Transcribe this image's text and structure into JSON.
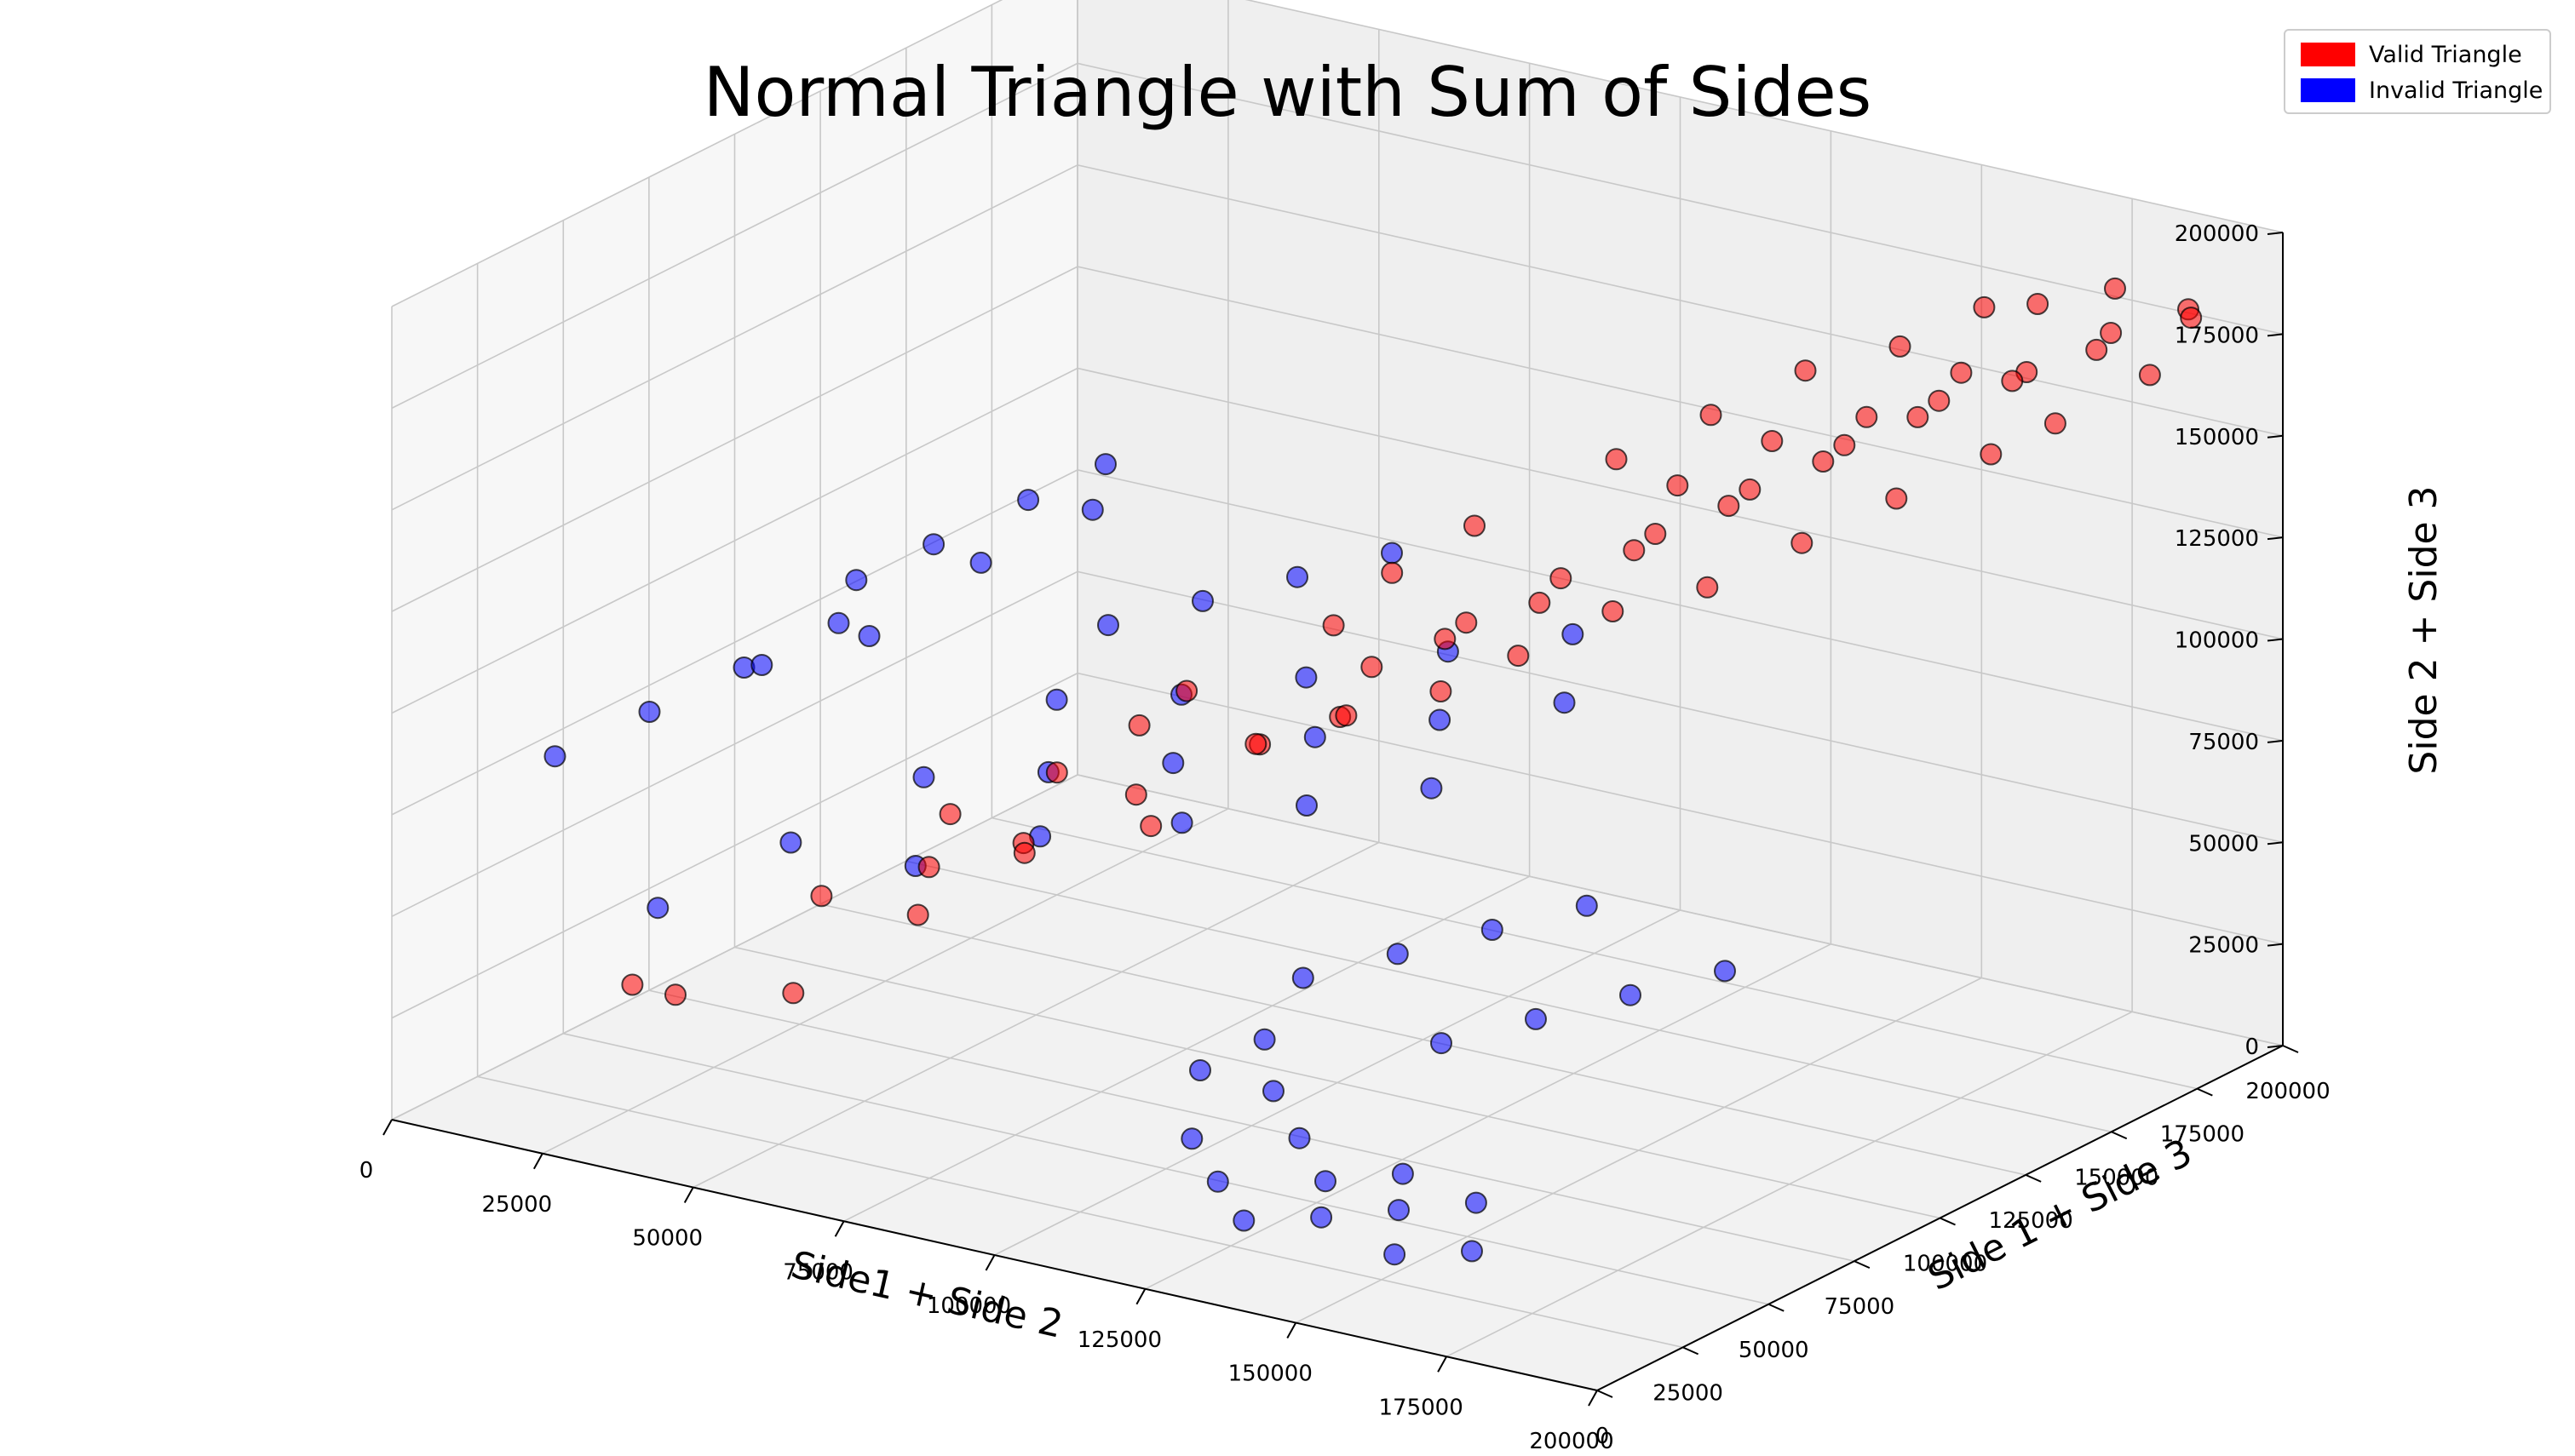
{
  "chart_data": {
    "type": "scatter",
    "projection": "3d",
    "title": "Normal Triangle with Sum of Sides",
    "xlabel": "Side1 + Side 2",
    "ylabel": "Side 1 + Side 3",
    "zlabel": "Side 2 + Side 3",
    "xlim": [
      0,
      200000
    ],
    "ylim": [
      0,
      200000
    ],
    "zlim": [
      0,
      200000
    ],
    "xticks": [
      "0",
      "25000",
      "50000",
      "75000",
      "100000",
      "125000",
      "150000",
      "175000",
      "200000"
    ],
    "yticks": [
      "0",
      "25000",
      "50000",
      "75000",
      "100000",
      "125000",
      "150000",
      "175000",
      "200000"
    ],
    "zticks": [
      "0",
      "25000",
      "50000",
      "75000",
      "100000",
      "125000",
      "150000",
      "175000",
      "200000"
    ],
    "grid": true,
    "legend_position": "top-right",
    "series": [
      {
        "name": "Valid Triangle",
        "color": "#ff0000",
        "points": [
          [
            20000,
            35000,
            25000
          ],
          [
            30000,
            30000,
            28000
          ],
          [
            40000,
            55000,
            45000
          ],
          [
            45000,
            38000,
            30000
          ],
          [
            55000,
            60000,
            55000
          ],
          [
            60000,
            48000,
            50000
          ],
          [
            65000,
            70000,
            60000
          ],
          [
            72000,
            58000,
            65000
          ],
          [
            78000,
            80000,
            72000
          ],
          [
            85000,
            72000,
            70000
          ],
          [
            90000,
            95000,
            82000
          ],
          [
            95000,
            85000,
            88000
          ],
          [
            100000,
            110000,
            98000
          ],
          [
            105000,
            92000,
            95000
          ],
          [
            110000,
            120000,
            108000
          ],
          [
            115000,
            105000,
            112000
          ],
          [
            120000,
            130000,
            118000
          ],
          [
            125000,
            115000,
            120000
          ],
          [
            130000,
            140000,
            128000
          ],
          [
            135000,
            125000,
            132000
          ],
          [
            140000,
            150000,
            138000
          ],
          [
            145000,
            135000,
            142000
          ],
          [
            150000,
            160000,
            148000
          ],
          [
            155000,
            145000,
            152000
          ],
          [
            160000,
            170000,
            158000
          ],
          [
            165000,
            155000,
            162000
          ],
          [
            170000,
            178000,
            165000
          ],
          [
            175000,
            165000,
            170000
          ],
          [
            180000,
            185000,
            175000
          ],
          [
            185000,
            172000,
            178000
          ],
          [
            190000,
            190000,
            182000
          ],
          [
            195000,
            182000,
            185000
          ],
          [
            110000,
            85000,
            100000
          ],
          [
            120000,
            95000,
            105000
          ],
          [
            130000,
            100000,
            115000
          ],
          [
            140000,
            110000,
            125000
          ],
          [
            150000,
            120000,
            130000
          ],
          [
            160000,
            130000,
            140000
          ],
          [
            170000,
            140000,
            150000
          ],
          [
            180000,
            150000,
            160000
          ],
          [
            100000,
            140000,
            120000
          ],
          [
            115000,
            155000,
            135000
          ],
          [
            125000,
            165000,
            145000
          ],
          [
            135000,
            175000,
            155000
          ],
          [
            145000,
            185000,
            160000
          ],
          [
            155000,
            192000,
            170000
          ],
          [
            88000,
            120000,
            100000
          ],
          [
            92000,
            130000,
            110000
          ],
          [
            70000,
            95000,
            80000
          ],
          [
            75000,
            100000,
            88000
          ],
          [
            62000,
            85000,
            70000
          ],
          [
            50000,
            75000,
            60000
          ],
          [
            165000,
            190000,
            175000
          ],
          [
            175000,
            195000,
            180000
          ],
          [
            185000,
            160000,
            165000
          ],
          [
            195000,
            170000,
            176000
          ],
          [
            128000,
            150000,
            135000
          ],
          [
            138000,
            160000,
            145000
          ],
          [
            148000,
            170000,
            150000
          ],
          [
            158000,
            180000,
            160000
          ]
        ]
      },
      {
        "name": "Invalid Triangle",
        "color": "#0000ff",
        "points": [
          [
            10000,
            60000,
            30000
          ],
          [
            15000,
            90000,
            35000
          ],
          [
            20000,
            120000,
            40000
          ],
          [
            25000,
            150000,
            48000
          ],
          [
            30000,
            100000,
            30000
          ],
          [
            35000,
            130000,
            42000
          ],
          [
            40000,
            160000,
            50000
          ],
          [
            45000,
            110000,
            38000
          ],
          [
            50000,
            140000,
            45000
          ],
          [
            55000,
            170000,
            55000
          ],
          [
            60000,
            125000,
            40000
          ],
          [
            65000,
            155000,
            50000
          ],
          [
            70000,
            185000,
            60000
          ],
          [
            75000,
            135000,
            45000
          ],
          [
            80000,
            165000,
            55000
          ],
          [
            85000,
            195000,
            65000
          ],
          [
            90000,
            145000,
            50000
          ],
          [
            95000,
            175000,
            60000
          ],
          [
            100000,
            60000,
            20000
          ],
          [
            105000,
            70000,
            25000
          ],
          [
            110000,
            40000,
            15000
          ],
          [
            115000,
            55000,
            22000
          ],
          [
            120000,
            30000,
            12000
          ],
          [
            125000,
            45000,
            18000
          ],
          [
            130000,
            20000,
            10000
          ],
          [
            135000,
            35000,
            15000
          ],
          [
            140000,
            25000,
            12000
          ],
          [
            145000,
            40000,
            18000
          ],
          [
            150000,
            30000,
            15000
          ],
          [
            155000,
            20000,
            10000
          ],
          [
            160000,
            35000,
            18000
          ],
          [
            165000,
            25000,
            12000
          ],
          [
            60000,
            30000,
            140000
          ],
          [
            70000,
            35000,
            150000
          ],
          [
            80000,
            45000,
            160000
          ],
          [
            90000,
            50000,
            170000
          ],
          [
            50000,
            20000,
            120000
          ],
          [
            65000,
            25000,
            130000
          ],
          [
            75000,
            40000,
            145000
          ],
          [
            85000,
            55000,
            155000
          ],
          [
            100000,
            90000,
            30000
          ],
          [
            110000,
            100000,
            35000
          ],
          [
            120000,
            110000,
            40000
          ],
          [
            130000,
            120000,
            45000
          ],
          [
            30000,
            50000,
            100000
          ],
          [
            40000,
            60000,
            110000
          ],
          [
            20000,
            40000,
            90000
          ],
          [
            10000,
            30000,
            80000
          ],
          [
            140000,
            60000,
            40000
          ],
          [
            150000,
            70000,
            45000
          ],
          [
            160000,
            80000,
            50000
          ],
          [
            170000,
            90000,
            55000
          ],
          [
            45000,
            185000,
            70000
          ],
          [
            55000,
            195000,
            75000
          ],
          [
            35000,
            175000,
            65000
          ],
          [
            25000,
            165000,
            60000
          ]
        ]
      }
    ]
  },
  "legend": {
    "items": [
      {
        "label": "Valid Triangle",
        "color": "#ff0000"
      },
      {
        "label": "Invalid Triangle",
        "color": "#0000ff"
      }
    ]
  }
}
